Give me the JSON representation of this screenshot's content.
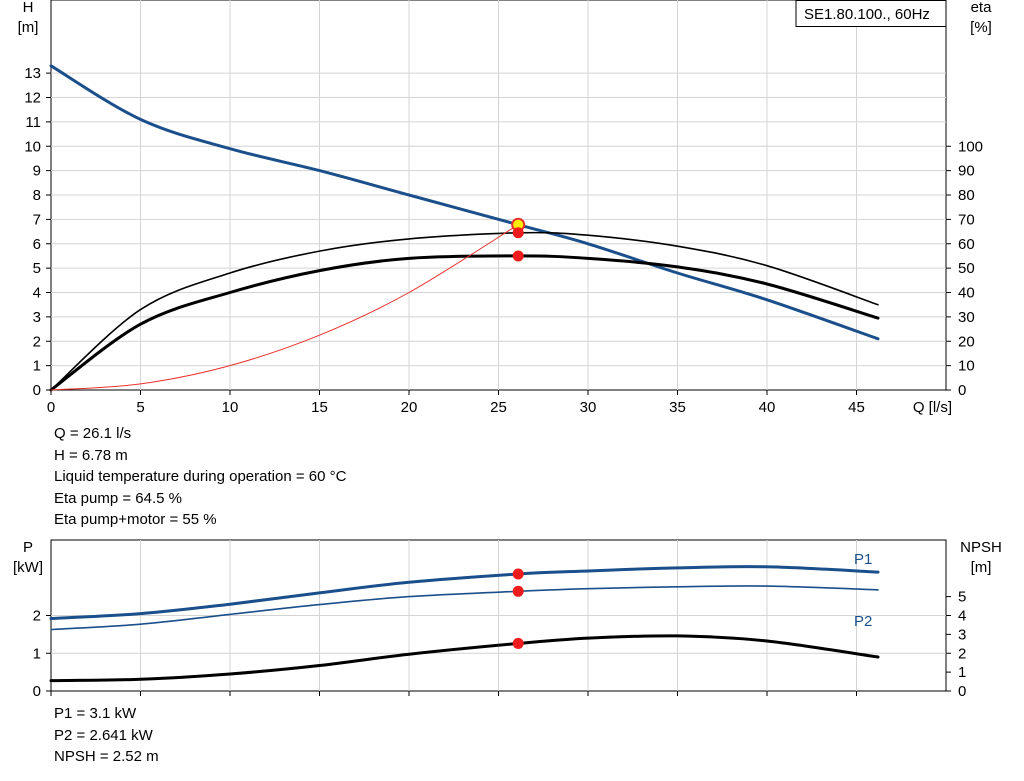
{
  "chart_data": [
    {
      "type": "line",
      "model_label": "SE1.80.100., 60Hz",
      "xlabel": "Q [l/s]",
      "ylabel_left": [
        "H",
        "[m]"
      ],
      "ylabel_right": [
        "eta",
        "[%]"
      ],
      "xlim": [
        0,
        50
      ],
      "ylim_left": [
        0,
        16
      ],
      "ylim_right": [
        0,
        160
      ],
      "x_ticks": [
        0,
        5,
        10,
        15,
        20,
        25,
        30,
        35,
        40,
        45
      ],
      "y_ticks_left": [
        0,
        1,
        2,
        3,
        4,
        5,
        6,
        7,
        8,
        9,
        10,
        11,
        12,
        13
      ],
      "y_ticks_right": [
        0,
        10,
        20,
        30,
        40,
        50,
        60,
        70,
        80,
        90,
        100
      ],
      "grid": true,
      "series": [
        {
          "key": "H",
          "axis": "left",
          "color": "#1a4f8b",
          "width": 3,
          "x": [
            0,
            5,
            10,
            15,
            20,
            26.1,
            30,
            35,
            40,
            46.2
          ],
          "y": [
            13.3,
            11.1,
            9.9,
            9.0,
            8.0,
            6.78,
            6.0,
            4.8,
            3.7,
            2.1
          ]
        },
        {
          "key": "eta_pump",
          "axis": "right",
          "color": "#000000",
          "width": 1.6,
          "x": [
            0,
            5,
            10,
            15,
            20,
            26.1,
            30,
            35,
            40,
            46.2
          ],
          "y": [
            0,
            33,
            48,
            57,
            62,
            64.5,
            63.5,
            59,
            51,
            35
          ]
        },
        {
          "key": "eta_pump_motor",
          "axis": "right",
          "color": "#000000",
          "width": 3,
          "x": [
            0,
            5,
            10,
            15,
            20,
            26.1,
            30,
            35,
            40,
            46.2
          ],
          "y": [
            0,
            27,
            40,
            49,
            54,
            55,
            54,
            50.5,
            43.5,
            29.5
          ]
        },
        {
          "key": "system_curve",
          "axis": "left",
          "color": "#e8322d",
          "width": 1,
          "x": [
            0,
            5,
            10,
            15,
            20,
            26.1
          ],
          "y": [
            0,
            0.25,
            1.0,
            2.25,
            4.0,
            6.78
          ]
        }
      ],
      "operating_points": [
        {
          "axis": "left",
          "x": 26.1,
          "y": 6.78,
          "style": "yellow"
        },
        {
          "axis": "right",
          "x": 26.1,
          "y": 64.5,
          "style": "red"
        },
        {
          "axis": "right",
          "x": 26.1,
          "y": 55,
          "style": "red"
        }
      ]
    },
    {
      "type": "line",
      "xlim": [
        0,
        50
      ],
      "ylabel_left": [
        "P",
        "[kW]"
      ],
      "ylabel_right": [
        "NPSH",
        "[m]"
      ],
      "ylim_left": [
        0,
        4
      ],
      "ylim_right": [
        0,
        8
      ],
      "x_ticks": [
        0,
        5,
        10,
        15,
        20,
        25,
        30,
        35,
        40,
        45
      ],
      "y_ticks_left": [
        0,
        1,
        2
      ],
      "y_ticks_right": [
        0,
        1,
        2,
        3,
        4,
        5
      ],
      "grid": true,
      "series": [
        {
          "name": "P1",
          "axis": "left",
          "color": "#1a4f8b",
          "width": 3,
          "x": [
            0,
            5,
            10,
            15,
            20,
            26.1,
            30,
            35,
            40,
            46.2
          ],
          "y": [
            1.92,
            2.05,
            2.3,
            2.6,
            2.88,
            3.1,
            3.18,
            3.26,
            3.29,
            3.15
          ]
        },
        {
          "name": "P2",
          "axis": "left",
          "color": "#1a4f8b",
          "width": 1.6,
          "x": [
            0,
            5,
            10,
            15,
            20,
            26.1,
            30,
            35,
            40,
            46.2
          ],
          "y": [
            1.63,
            1.77,
            2.03,
            2.29,
            2.5,
            2.641,
            2.71,
            2.76,
            2.78,
            2.68
          ]
        },
        {
          "key": "NPSH",
          "axis": "right",
          "color": "#000000",
          "width": 3,
          "x": [
            0,
            5,
            10,
            15,
            20,
            26.1,
            30,
            35,
            40,
            46.2
          ],
          "y": [
            0.55,
            0.62,
            0.9,
            1.35,
            1.95,
            2.52,
            2.8,
            2.92,
            2.65,
            1.8
          ]
        }
      ],
      "operating_points": [
        {
          "axis": "left",
          "x": 26.1,
          "y": 3.1,
          "style": "red"
        },
        {
          "axis": "left",
          "x": 26.1,
          "y": 2.641,
          "style": "red"
        },
        {
          "axis": "right",
          "x": 26.1,
          "y": 2.52,
          "style": "red"
        }
      ]
    }
  ],
  "info_top": [
    "Q = 26.1 l/s",
    "H = 6.78 m",
    "Liquid temperature during operation = 60 °C",
    "Eta pump = 64.5 %",
    "Eta pump+motor = 55 %"
  ],
  "info_bottom": [
    "P1 = 3.1 kW",
    "P2 = 2.641 kW",
    "NPSH = 2.52 m"
  ]
}
